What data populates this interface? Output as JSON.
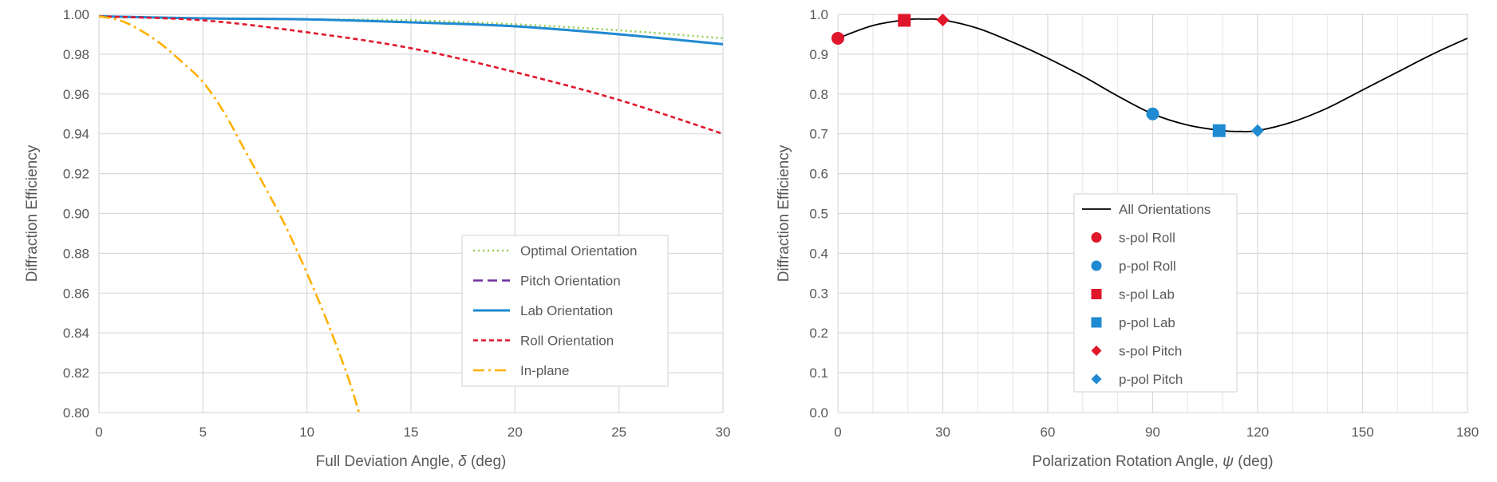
{
  "chart_data": [
    {
      "type": "line",
      "title": "",
      "xlabel": "Full Deviation Angle, δ (deg)",
      "xlabel_parts": [
        "Full Deviation Angle, ",
        "δ",
        " (deg)"
      ],
      "ylabel": "Diffraction Efficiency",
      "xlim": [
        0,
        30
      ],
      "ylim": [
        0.8,
        1.0
      ],
      "xticks": [
        0,
        5,
        10,
        15,
        20,
        25,
        30
      ],
      "yticks": [
        0.8,
        0.82,
        0.84,
        0.86,
        0.88,
        0.9,
        0.92,
        0.94,
        0.96,
        0.98,
        1.0
      ],
      "ytick_labels": [
        "0.80",
        "0.82",
        "0.84",
        "0.86",
        "0.88",
        "0.90",
        "0.92",
        "0.94",
        "0.96",
        "0.98",
        "1.00"
      ],
      "grid": true,
      "legend_position": "bottom-right",
      "series": [
        {
          "name": "Optimal Orientation",
          "color": "#92D050",
          "dash": "dotted",
          "x": [
            0,
            5,
            10,
            15,
            20,
            25,
            30
          ],
          "y": [
            0.999,
            0.998,
            0.9975,
            0.997,
            0.995,
            0.992,
            0.988
          ]
        },
        {
          "name": "Pitch Orientation",
          "color": "#7030A0",
          "dash": "dashed",
          "x": [
            0,
            5,
            10,
            15,
            20,
            25,
            30
          ],
          "y": [
            0.999,
            0.998,
            0.9975,
            0.996,
            0.994,
            0.99,
            0.985
          ]
        },
        {
          "name": "Lab Orientation",
          "color": "#1F8AD2",
          "dash": "solid",
          "x": [
            0,
            5,
            10,
            15,
            20,
            25,
            30
          ],
          "y": [
            0.999,
            0.998,
            0.9975,
            0.996,
            0.994,
            0.99,
            0.985
          ]
        },
        {
          "name": "Roll Orientation",
          "color": "#E0162B",
          "dash": "short-dashed",
          "x": [
            0,
            5,
            10,
            15,
            20,
            25,
            30
          ],
          "y": [
            0.999,
            0.997,
            0.991,
            0.983,
            0.971,
            0.957,
            0.94
          ]
        },
        {
          "name": "In-plane",
          "color": "#FFB000",
          "dash": "dash-dot",
          "x": [
            0,
            1,
            2,
            3,
            4,
            5,
            6,
            7,
            8,
            9,
            10,
            11,
            12,
            12.5
          ],
          "y": [
            0.999,
            0.997,
            0.992,
            0.985,
            0.976,
            0.966,
            0.951,
            0.932,
            0.913,
            0.893,
            0.87,
            0.845,
            0.817,
            0.8
          ]
        }
      ]
    },
    {
      "type": "line",
      "title": "",
      "xlabel": "Polarization Rotation Angle, ψ (deg)",
      "xlabel_parts": [
        "Polarization Rotation Angle, ",
        "ψ",
        " (deg)"
      ],
      "ylabel": "Diffraction Efficiency",
      "xlim": [
        0,
        180
      ],
      "ylim": [
        0.0,
        1.0
      ],
      "xticks": [
        0,
        30,
        60,
        90,
        120,
        150,
        180
      ],
      "minor_xticks": [
        10,
        20,
        40,
        50,
        70,
        80,
        100,
        110,
        130,
        140,
        160,
        170
      ],
      "yticks": [
        0.0,
        0.1,
        0.2,
        0.3,
        0.4,
        0.5,
        0.6,
        0.7,
        0.8,
        0.9,
        1.0
      ],
      "ytick_labels": [
        "0.0",
        "0.1",
        "0.2",
        "0.3",
        "0.4",
        "0.5",
        "0.6",
        "0.7",
        "0.8",
        "0.9",
        "1.0"
      ],
      "grid": true,
      "legend_position": "bottom-center",
      "series": [
        {
          "name": "All Orientations",
          "color": "#000000",
          "kind": "curve",
          "x": [
            0,
            10,
            20,
            25,
            30,
            40,
            50,
            60,
            70,
            80,
            90,
            100,
            110,
            115,
            120,
            130,
            140,
            150,
            160,
            170,
            180
          ],
          "y": [
            0.94,
            0.972,
            0.987,
            0.988,
            0.986,
            0.965,
            0.93,
            0.89,
            0.845,
            0.795,
            0.75,
            0.722,
            0.708,
            0.706,
            0.708,
            0.73,
            0.765,
            0.81,
            0.855,
            0.9,
            0.94
          ]
        },
        {
          "name": "s-pol Roll",
          "color": "#E0162B",
          "marker": "circle",
          "x": [
            0
          ],
          "y": [
            0.94
          ]
        },
        {
          "name": "p-pol Roll",
          "color": "#1F8AD2",
          "marker": "circle",
          "x": [
            90
          ],
          "y": [
            0.75
          ]
        },
        {
          "name": "s-pol Lab",
          "color": "#E0162B",
          "marker": "square",
          "x": [
            19
          ],
          "y": [
            0.985
          ]
        },
        {
          "name": "p-pol Lab",
          "color": "#1F8AD2",
          "marker": "square",
          "x": [
            109
          ],
          "y": [
            0.708
          ]
        },
        {
          "name": "s-pol Pitch",
          "color": "#E0162B",
          "marker": "diamond",
          "x": [
            30
          ],
          "y": [
            0.986
          ]
        },
        {
          "name": "p-pol Pitch",
          "color": "#1F8AD2",
          "marker": "diamond",
          "x": [
            120
          ],
          "y": [
            0.708
          ]
        }
      ]
    }
  ]
}
